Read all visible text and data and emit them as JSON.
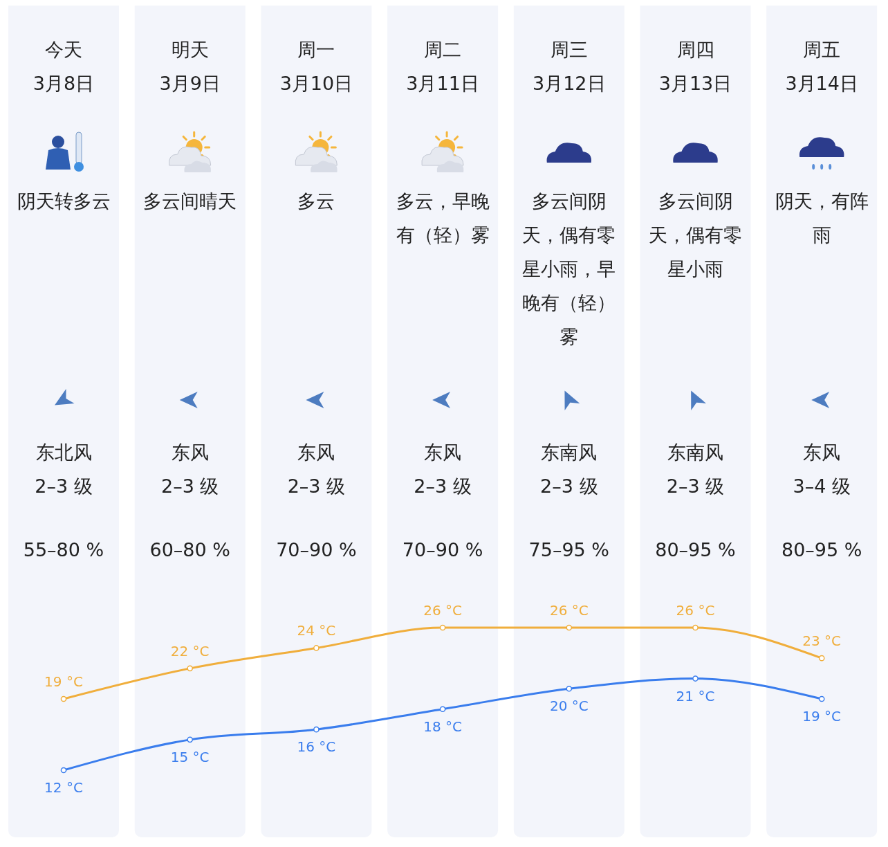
{
  "chart_data": {
    "type": "line",
    "categories": [
      "3月8日",
      "3月9日",
      "3月10日",
      "3月11日",
      "3月12日",
      "3月13日",
      "3月14日"
    ],
    "series": [
      {
        "color": "#f0ae3c",
        "values": [
          19,
          22,
          24,
          26,
          26,
          26,
          23
        ],
        "value_labels": [
          "19 °C",
          "22 °C",
          "24 °C",
          "26 °C",
          "26 °C",
          "26 °C",
          "23 °C"
        ]
      },
      {
        "color": "#3a7ded",
        "values": [
          12,
          15,
          16,
          18,
          20,
          21,
          19
        ],
        "value_labels": [
          "12 °C",
          "15 °C",
          "16 °C",
          "18 °C",
          "20 °C",
          "21 °C",
          "19 °C"
        ]
      }
    ],
    "marker": "circle",
    "bands": [
      {
        "axis": "x",
        "from": "3月8日",
        "to": "3月8日",
        "color": "#f3f5fb"
      },
      {
        "axis": "x",
        "from": "3月9日",
        "to": "3月9日",
        "color": "#f3f5fb"
      },
      {
        "axis": "x",
        "from": "3月10日",
        "to": "3月10日",
        "color": "#f3f5fb"
      },
      {
        "axis": "x",
        "from": "3月11日",
        "to": "3月11日",
        "color": "#f3f5fb"
      },
      {
        "axis": "x",
        "from": "3月12日",
        "to": "3月12日",
        "color": "#f3f5fb"
      },
      {
        "axis": "x",
        "from": "3月13日",
        "to": "3月13日",
        "color": "#f3f5fb"
      },
      {
        "axis": "x",
        "from": "3月14日",
        "to": "3月14日",
        "color": "#f3f5fb"
      }
    ],
    "annotations": [
      "今天",
      "阴天转多云",
      "东北风",
      "2–3 级",
      "55–80 %",
      "明天",
      "多云间晴天",
      "东风",
      "2–3 级",
      "60–80 %",
      "周一",
      "多云",
      "东风",
      "2–3 级",
      "70–90 %",
      "周二",
      "多云，早晚有（轻）雾",
      "东风",
      "2–3 级",
      "70–90 %",
      "周三",
      "多云间阴天，偶有零星小雨，早晚有（轻）雾",
      "东南风",
      "2–3 级",
      "75–95 %",
      "周四",
      "多云间阴天，偶有零星小雨",
      "东南风",
      "2–3 级",
      "80–95 %",
      "周五",
      "阴天，有阵雨",
      "东风",
      "3–4 级",
      "80–95 %"
    ]
  }
}
